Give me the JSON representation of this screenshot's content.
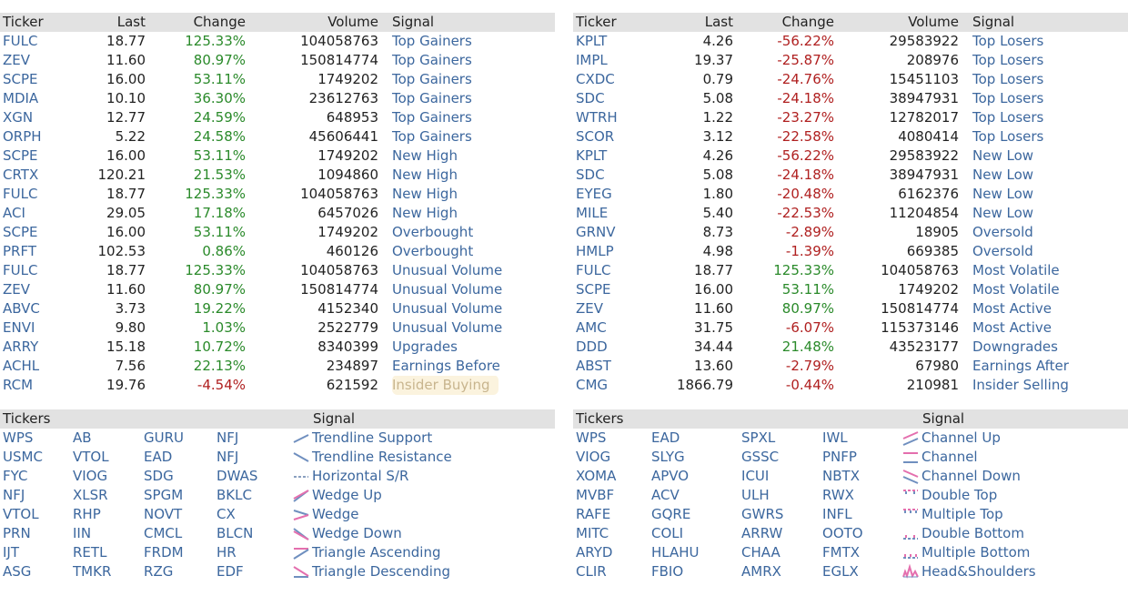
{
  "signals_left": {
    "headers": {
      "ticker": "Ticker",
      "last": "Last",
      "change": "Change",
      "volume": "Volume",
      "signal": "Signal"
    },
    "rows": [
      {
        "ticker": "FULC",
        "last": "18.77",
        "change": "125.33%",
        "dir": "pos",
        "volume": "104058763",
        "signal": "Top Gainers"
      },
      {
        "ticker": "ZEV",
        "last": "11.60",
        "change": "80.97%",
        "dir": "pos",
        "volume": "150814774",
        "signal": "Top Gainers"
      },
      {
        "ticker": "SCPE",
        "last": "16.00",
        "change": "53.11%",
        "dir": "pos",
        "volume": "1749202",
        "signal": "Top Gainers"
      },
      {
        "ticker": "MDIA",
        "last": "10.10",
        "change": "36.30%",
        "dir": "pos",
        "volume": "23612763",
        "signal": "Top Gainers"
      },
      {
        "ticker": "XGN",
        "last": "12.77",
        "change": "24.59%",
        "dir": "pos",
        "volume": "648953",
        "signal": "Top Gainers"
      },
      {
        "ticker": "ORPH",
        "last": "5.22",
        "change": "24.58%",
        "dir": "pos",
        "volume": "45606441",
        "signal": "Top Gainers"
      },
      {
        "ticker": "SCPE",
        "last": "16.00",
        "change": "53.11%",
        "dir": "pos",
        "volume": "1749202",
        "signal": "New High"
      },
      {
        "ticker": "CRTX",
        "last": "120.21",
        "change": "21.53%",
        "dir": "pos",
        "volume": "1094860",
        "signal": "New High"
      },
      {
        "ticker": "FULC",
        "last": "18.77",
        "change": "125.33%",
        "dir": "pos",
        "volume": "104058763",
        "signal": "New High"
      },
      {
        "ticker": "ACI",
        "last": "29.05",
        "change": "17.18%",
        "dir": "pos",
        "volume": "6457026",
        "signal": "New High"
      },
      {
        "ticker": "SCPE",
        "last": "16.00",
        "change": "53.11%",
        "dir": "pos",
        "volume": "1749202",
        "signal": "Overbought"
      },
      {
        "ticker": "PRFT",
        "last": "102.53",
        "change": "0.86%",
        "dir": "pos",
        "volume": "460126",
        "signal": "Overbought"
      },
      {
        "ticker": "FULC",
        "last": "18.77",
        "change": "125.33%",
        "dir": "pos",
        "volume": "104058763",
        "signal": "Unusual Volume"
      },
      {
        "ticker": "ZEV",
        "last": "11.60",
        "change": "80.97%",
        "dir": "pos",
        "volume": "150814774",
        "signal": "Unusual Volume"
      },
      {
        "ticker": "ABVC",
        "last": "3.73",
        "change": "19.22%",
        "dir": "pos",
        "volume": "4152340",
        "signal": "Unusual Volume"
      },
      {
        "ticker": "ENVI",
        "last": "9.80",
        "change": "1.03%",
        "dir": "pos",
        "volume": "2522779",
        "signal": "Unusual Volume"
      },
      {
        "ticker": "ARRY",
        "last": "15.18",
        "change": "10.72%",
        "dir": "pos",
        "volume": "8340399",
        "signal": "Upgrades"
      },
      {
        "ticker": "ACHL",
        "last": "7.56",
        "change": "22.13%",
        "dir": "pos",
        "volume": "234897",
        "signal": "Earnings Before"
      },
      {
        "ticker": "RCM",
        "last": "19.76",
        "change": "-4.54%",
        "dir": "neg",
        "volume": "621592",
        "signal": "Insider Buying",
        "highlight": true
      }
    ]
  },
  "signals_right": {
    "headers": {
      "ticker": "Ticker",
      "last": "Last",
      "change": "Change",
      "volume": "Volume",
      "signal": "Signal"
    },
    "rows": [
      {
        "ticker": "KPLT",
        "last": "4.26",
        "change": "-56.22%",
        "dir": "neg",
        "volume": "29583922",
        "signal": "Top Losers"
      },
      {
        "ticker": "IMPL",
        "last": "19.37",
        "change": "-25.87%",
        "dir": "neg",
        "volume": "208976",
        "signal": "Top Losers"
      },
      {
        "ticker": "CXDC",
        "last": "0.79",
        "change": "-24.76%",
        "dir": "neg",
        "volume": "15451103",
        "signal": "Top Losers"
      },
      {
        "ticker": "SDC",
        "last": "5.08",
        "change": "-24.18%",
        "dir": "neg",
        "volume": "38947931",
        "signal": "Top Losers"
      },
      {
        "ticker": "WTRH",
        "last": "1.22",
        "change": "-23.27%",
        "dir": "neg",
        "volume": "12782017",
        "signal": "Top Losers"
      },
      {
        "ticker": "SCOR",
        "last": "3.12",
        "change": "-22.58%",
        "dir": "neg",
        "volume": "4080414",
        "signal": "Top Losers"
      },
      {
        "ticker": "KPLT",
        "last": "4.26",
        "change": "-56.22%",
        "dir": "neg",
        "volume": "29583922",
        "signal": "New Low"
      },
      {
        "ticker": "SDC",
        "last": "5.08",
        "change": "-24.18%",
        "dir": "neg",
        "volume": "38947931",
        "signal": "New Low"
      },
      {
        "ticker": "EYEG",
        "last": "1.80",
        "change": "-20.48%",
        "dir": "neg",
        "volume": "6162376",
        "signal": "New Low"
      },
      {
        "ticker": "MILE",
        "last": "5.40",
        "change": "-22.53%",
        "dir": "neg",
        "volume": "11204854",
        "signal": "New Low"
      },
      {
        "ticker": "GRNV",
        "last": "8.73",
        "change": "-2.89%",
        "dir": "neg",
        "volume": "18905",
        "signal": "Oversold"
      },
      {
        "ticker": "HMLP",
        "last": "4.98",
        "change": "-1.39%",
        "dir": "neg",
        "volume": "669385",
        "signal": "Oversold"
      },
      {
        "ticker": "FULC",
        "last": "18.77",
        "change": "125.33%",
        "dir": "pos",
        "volume": "104058763",
        "signal": "Most Volatile"
      },
      {
        "ticker": "SCPE",
        "last": "16.00",
        "change": "53.11%",
        "dir": "pos",
        "volume": "1749202",
        "signal": "Most Volatile"
      },
      {
        "ticker": "ZEV",
        "last": "11.60",
        "change": "80.97%",
        "dir": "pos",
        "volume": "150814774",
        "signal": "Most Active"
      },
      {
        "ticker": "AMC",
        "last": "31.75",
        "change": "-6.07%",
        "dir": "neg",
        "volume": "115373146",
        "signal": "Most Active"
      },
      {
        "ticker": "DDD",
        "last": "34.44",
        "change": "21.48%",
        "dir": "pos",
        "volume": "43523177",
        "signal": "Downgrades"
      },
      {
        "ticker": "ABST",
        "last": "13.60",
        "change": "-2.79%",
        "dir": "neg",
        "volume": "67980",
        "signal": "Earnings After"
      },
      {
        "ticker": "CMG",
        "last": "1866.79",
        "change": "-0.44%",
        "dir": "neg",
        "volume": "210981",
        "signal": "Insider Selling"
      }
    ]
  },
  "patterns_left": {
    "headers": {
      "tickers": "Tickers",
      "signal": "Signal"
    },
    "rows": [
      {
        "tickers": [
          "WPS",
          "AB",
          "GURU",
          "NFJ"
        ],
        "signal": "Trendline Support",
        "icon": "trendline-support-icon"
      },
      {
        "tickers": [
          "USMC",
          "VTOL",
          "EAD",
          "NFJ"
        ],
        "signal": "Trendline Resistance",
        "icon": "trendline-resistance-icon"
      },
      {
        "tickers": [
          "FYC",
          "VIOG",
          "SDG",
          "DWAS"
        ],
        "signal": "Horizontal S/R",
        "icon": "horizontal-sr-icon"
      },
      {
        "tickers": [
          "NFJ",
          "XLSR",
          "SPGM",
          "BKLC"
        ],
        "signal": "Wedge Up",
        "icon": "wedge-up-icon"
      },
      {
        "tickers": [
          "VTOL",
          "RHP",
          "NOVT",
          "CX"
        ],
        "signal": "Wedge",
        "icon": "wedge-icon"
      },
      {
        "tickers": [
          "PRN",
          "IIN",
          "CMCL",
          "BLCN"
        ],
        "signal": "Wedge Down",
        "icon": "wedge-down-icon"
      },
      {
        "tickers": [
          "IJT",
          "RETL",
          "FRDM",
          "HR"
        ],
        "signal": "Triangle Ascending",
        "icon": "triangle-ascending-icon"
      },
      {
        "tickers": [
          "ASG",
          "TMKR",
          "RZG",
          "EDF"
        ],
        "signal": "Triangle Descending",
        "icon": "triangle-descending-icon"
      }
    ]
  },
  "patterns_right": {
    "headers": {
      "tickers": "Tickers",
      "signal": "Signal"
    },
    "rows": [
      {
        "tickers": [
          "WPS",
          "EAD",
          "SPXL",
          "IWL"
        ],
        "signal": "Channel Up",
        "icon": "channel-up-icon"
      },
      {
        "tickers": [
          "VIOG",
          "SLYG",
          "GSSC",
          "PNFP"
        ],
        "signal": "Channel",
        "icon": "channel-icon"
      },
      {
        "tickers": [
          "XOMA",
          "APVO",
          "ICUI",
          "NBTX"
        ],
        "signal": "Channel Down",
        "icon": "channel-down-icon"
      },
      {
        "tickers": [
          "MVBF",
          "ACV",
          "ULH",
          "RWX"
        ],
        "signal": "Double Top",
        "icon": "double-top-icon"
      },
      {
        "tickers": [
          "RAFE",
          "GQRE",
          "GWRS",
          "INFL"
        ],
        "signal": "Multiple Top",
        "icon": "multiple-top-icon"
      },
      {
        "tickers": [
          "MITC",
          "COLI",
          "ARRW",
          "OOTO"
        ],
        "signal": "Double Bottom",
        "icon": "double-bottom-icon"
      },
      {
        "tickers": [
          "ARYD",
          "HLAHU",
          "CHAA",
          "FMTX"
        ],
        "signal": "Multiple Bottom",
        "icon": "multiple-bottom-icon"
      },
      {
        "tickers": [
          "CLIR",
          "FBIO",
          "AMRX",
          "EGLX"
        ],
        "signal": "Head&Shoulders",
        "icon": "head-shoulders-icon"
      }
    ]
  }
}
